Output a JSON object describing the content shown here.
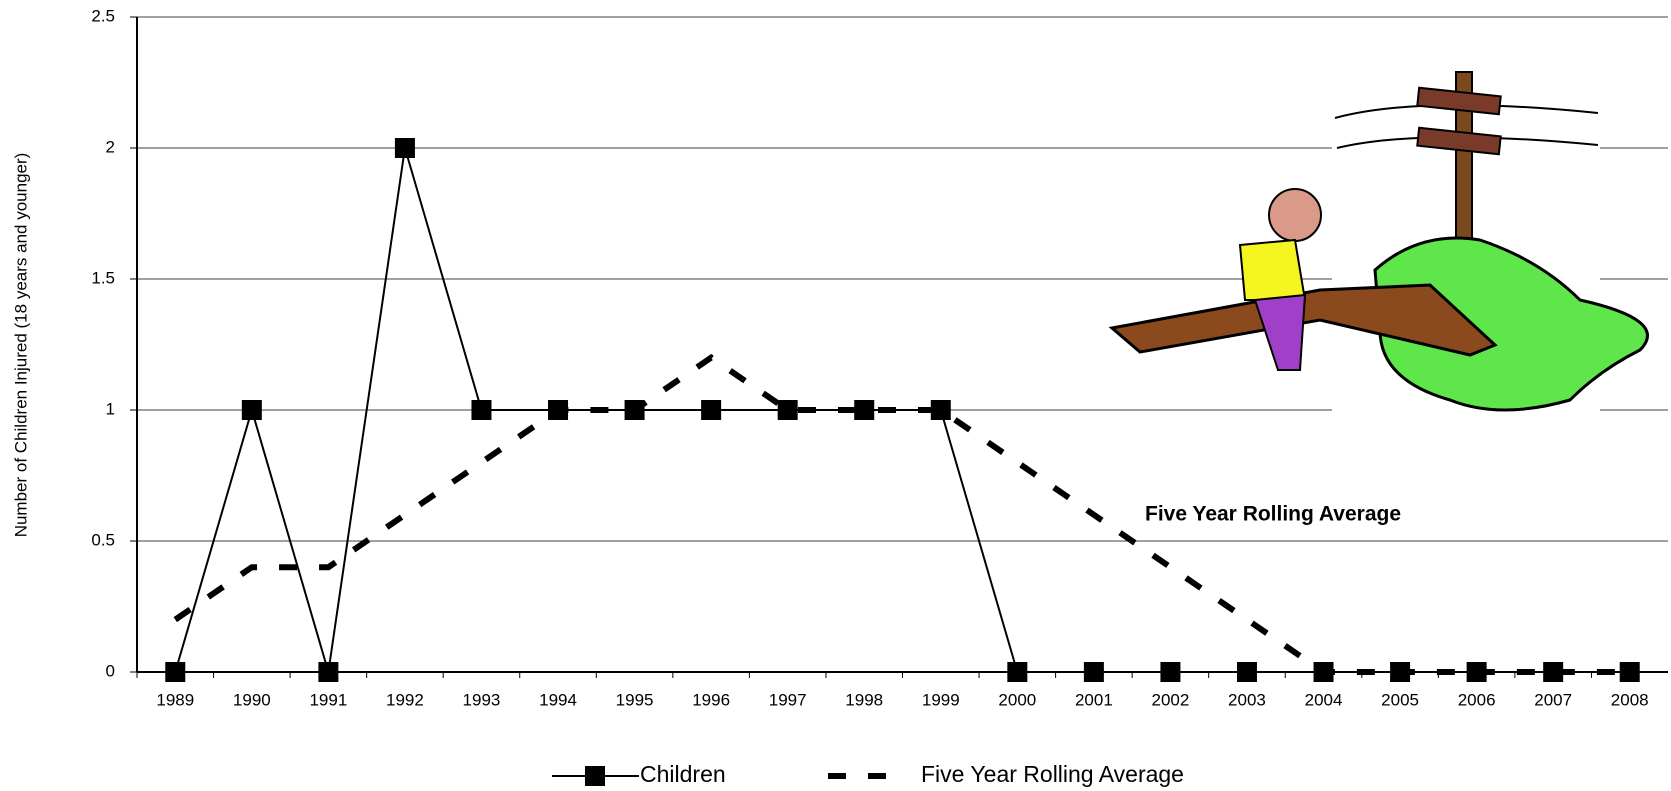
{
  "chart_data": {
    "type": "line",
    "y_label": "Number of Children Injured (18 years and younger)",
    "annotation": "Five Year Rolling Average",
    "categories": [
      "1989",
      "1990",
      "1991",
      "1992",
      "1993",
      "1994",
      "1995",
      "1996",
      "1997",
      "1998",
      "1999",
      "2000",
      "2001",
      "2002",
      "2003",
      "2004",
      "2005",
      "2006",
      "2007",
      "2008"
    ],
    "series": [
      {
        "name": "Children",
        "color": "#000000",
        "style": "solid-square",
        "values": [
          0,
          1,
          0,
          2,
          1,
          1,
          1,
          1,
          1,
          1,
          1,
          0,
          0,
          0,
          0,
          0,
          0,
          0,
          0,
          0
        ]
      },
      {
        "name": "Five Year Rolling Average",
        "color": "#000000",
        "style": "dashed",
        "values": [
          0.2,
          0.4,
          0.4,
          0.6,
          0.8,
          1.0,
          1.0,
          1.2,
          1.0,
          1.0,
          1.0,
          0.8,
          0.6,
          0.4,
          0.2,
          0,
          0,
          0,
          0,
          0
        ]
      }
    ],
    "ylim": [
      0,
      2.5
    ],
    "yticks": [
      0,
      0.5,
      1,
      1.5,
      2,
      2.5
    ],
    "grid": true,
    "legend": "bottom"
  }
}
